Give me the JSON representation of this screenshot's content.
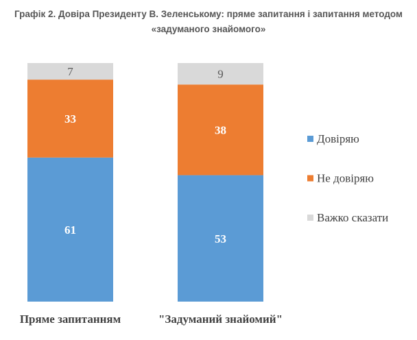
{
  "title_line1": "Графік 2. Довіра Президенту В. Зеленському: пряме запитання і запитання методом",
  "title_line2": "«задуманого знайомого»",
  "chart_data": {
    "type": "stacked-bar",
    "title": "Графік 2. Довіра Президенту В. Зеленському: пряме запитання і запитання методом «задуманого знайомого»",
    "categories": [
      "Пряме запитанням",
      "\"Задуманий знайомий\""
    ],
    "series": [
      {
        "name": "Довіряю",
        "values": [
          61,
          53
        ],
        "color": "#5B9BD5"
      },
      {
        "name": "Не довіряю",
        "values": [
          33,
          38
        ],
        "color": "#ED7D31"
      },
      {
        "name": "Важко сказати",
        "values": [
          7,
          9
        ],
        "color": "#D9D9D9"
      }
    ],
    "legend_position": "right",
    "grid": false
  }
}
